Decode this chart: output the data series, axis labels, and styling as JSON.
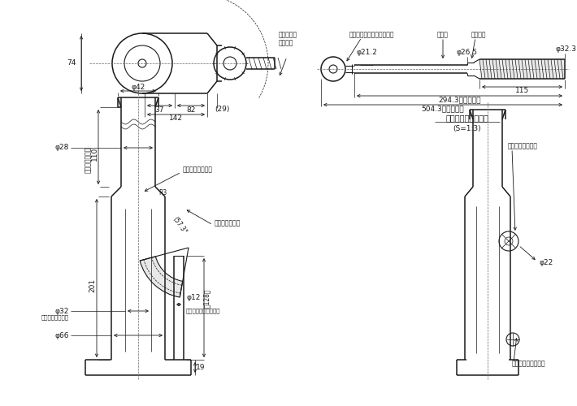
{
  "bg_color": "#ffffff",
  "line_color": "#1a1a1a",
  "center_line_color": "#666666",
  "thin_color": "#333333",
  "annotations": {
    "lever_rotation": "操作レバー\n回転方向",
    "oil_filling": "オイルフィリング",
    "lever_socket": "レバーソケット",
    "release_screw_insert": "リリーズスクリュウ差込口",
    "telescopic": "伸縮式",
    "stopper": "ストッパ",
    "lever_insert": "操作レバー差込口",
    "release_screw": "リリーズスクリュウ",
    "lever_detail_title": "専用操作レバー詳細",
    "lever_detail_scale": "(S=1:3)",
    "angle_label": "57.3°",
    "r3_label": "R3"
  },
  "dims": {
    "d74": "74",
    "d37": "37",
    "d82": "82",
    "d142": "142",
    "d29": "(29)",
    "d42": "φ42",
    "stroke": "110",
    "stroke_label": "（ストローク）",
    "d201": "201",
    "d19": "19",
    "d28": "φ28",
    "d32": "φ32",
    "d32_note": "（シリンダ内径）",
    "d66": "φ66",
    "d12": "φ12",
    "d12_note": "（ポンプピストン径）",
    "d128": "（128）",
    "lev_d21": "φ21.2",
    "lev_d26": "φ26.5",
    "lev_d32": "φ32.3",
    "lev_115": "115",
    "lev_294": "294.3（最短長）",
    "lev_504": "504.3（最伸長）",
    "sv_d22": "φ22"
  }
}
